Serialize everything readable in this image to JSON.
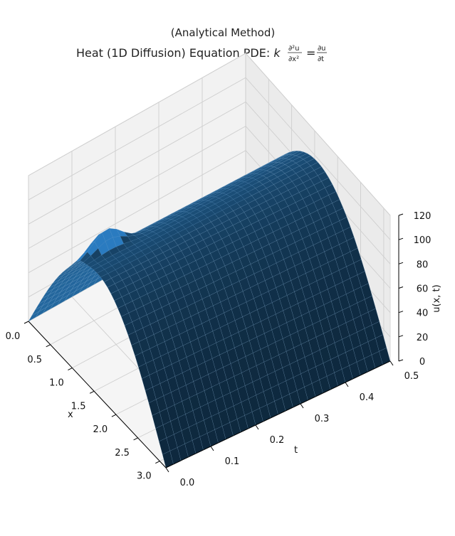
{
  "chart_data": {
    "type": "surface3d",
    "title": "(Analytical Method)",
    "subtitle_parts": {
      "prefix": "Heat (1D Diffusion) Equation PDE: ",
      "k": "k",
      "lhs_num": "∂²u",
      "lhs_den": "∂x²",
      "equals": "=",
      "rhs_num": "∂u",
      "rhs_den": "∂t"
    },
    "xlabel": "x",
    "ylabel": "t",
    "zlabel": "u(x, t)",
    "x_range": [
      0,
      3.14159
    ],
    "t_range": [
      0,
      0.5
    ],
    "z_range": [
      0,
      120
    ],
    "x_ticks": [
      "0.0",
      "0.5",
      "1.0",
      "1.5",
      "2.0",
      "2.5",
      "3.0"
    ],
    "t_ticks": [
      "0.0",
      "0.1",
      "0.2",
      "0.3",
      "0.4",
      "0.5"
    ],
    "z_ticks": [
      "0",
      "20",
      "40",
      "60",
      "80",
      "100",
      "120"
    ],
    "surface_description": "u(x,t) = 100 sin(x) plus a small bump near x≈1.2, t≈0.05; surface rises from 0 at x=0 and x=π to ~100 at x=π/2, nearly constant in t",
    "grid": true,
    "surface_color": "#1f4e7a",
    "highlight_color": "#2a7bc0"
  }
}
